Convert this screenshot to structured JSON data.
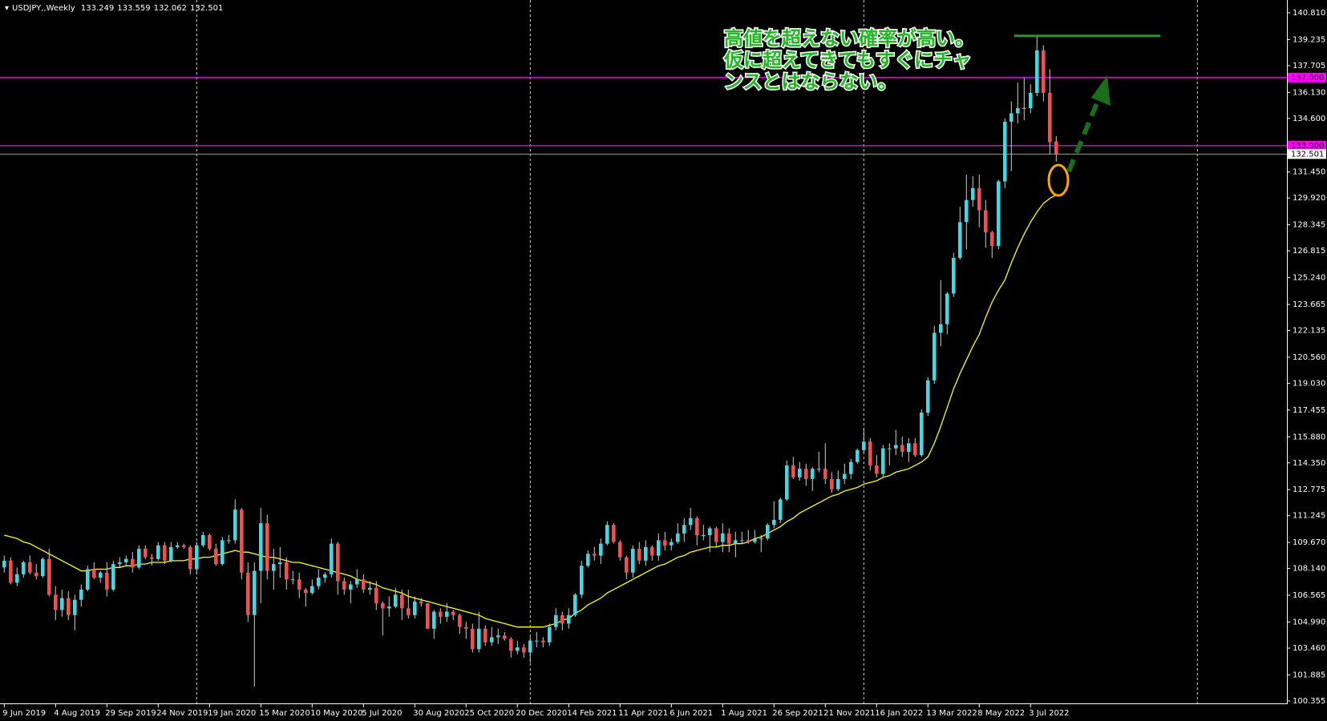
{
  "chart_data": {
    "type": "candlestick",
    "title": "USDJPY,,Weekly",
    "annotation": [
      "高値を超えない確率が高い。",
      "仮に超えてきてもすぐにチャ",
      "ンスとはならない。"
    ],
    "up_color": "#3fd8e6",
    "down_color": "#ff4a4a",
    "wick_color": "#cfcfcf",
    "ylim": [
      100.21,
      141.56
    ],
    "yticks": [
      {
        "value": 140.81,
        "label": "140.810"
      },
      139.235,
      137.705,
      {
        "value": 136.13,
        "label": "136.130"
      },
      {
        "value": 134.6,
        "label": "134.600"
      },
      133.025,
      {
        "value": 131.45,
        "label": "131.450"
      },
      {
        "value": 129.92,
        "label": "129.920"
      },
      128.345,
      126.815,
      {
        "value": 125.24,
        "label": "125.240"
      },
      123.665,
      122.135,
      {
        "value": 120.56,
        "label": "120.560"
      },
      {
        "value": 119.03,
        "label": "119.030"
      },
      117.455,
      {
        "value": 115.88,
        "label": "115.880"
      },
      {
        "value": 114.35,
        "label": "114.350"
      },
      112.775,
      111.245,
      {
        "value": 109.67,
        "label": "109.670"
      },
      {
        "value": 108.14,
        "label": "108.140"
      },
      106.565,
      {
        "value": 104.99,
        "label": "104.990"
      },
      {
        "value": 103.46,
        "label": "103.460"
      },
      101.885,
      100.355
    ],
    "hlines": [
      {
        "value": 137,
        "label": "137.000",
        "color": "#ff00ff"
      },
      {
        "value": 133,
        "label": "133.000",
        "color": "#ff00ff"
      }
    ],
    "current_price": {
      "value": 132.501,
      "color": "#9a9a9a"
    },
    "resistance": {
      "value": 139.45,
      "color": "#1e9e1e"
    },
    "categories": [
      "9 Jun 2019",
      null,
      null,
      null,
      null,
      null,
      null,
      null,
      "4 Aug 2019",
      null,
      null,
      null,
      null,
      null,
      null,
      null,
      "29 Sep 2019",
      null,
      null,
      null,
      null,
      null,
      null,
      null,
      "24 Nov 2019",
      null,
      null,
      null,
      null,
      null,
      null,
      null,
      "19 Jan 2020",
      null,
      null,
      null,
      null,
      null,
      null,
      null,
      "15 Mar 2020",
      null,
      null,
      null,
      null,
      null,
      null,
      null,
      "10 May 2020",
      null,
      null,
      null,
      null,
      null,
      null,
      null,
      "5 Jul 2020",
      null,
      null,
      null,
      null,
      null,
      null,
      null,
      "30 Aug 2020",
      null,
      null,
      null,
      null,
      null,
      null,
      null,
      "25 Oct 2020",
      null,
      null,
      null,
      null,
      null,
      null,
      null,
      "20 Dec 2020",
      null,
      null,
      null,
      null,
      null,
      null,
      null,
      "14 Feb 2021",
      null,
      null,
      null,
      null,
      null,
      null,
      null,
      "11 Apr 2021",
      null,
      null,
      null,
      null,
      null,
      null,
      null,
      "6 Jun 2021",
      null,
      null,
      null,
      null,
      null,
      null,
      null,
      "1 Aug 2021",
      null,
      null,
      null,
      null,
      null,
      null,
      null,
      "26 Sep 2021",
      null,
      null,
      null,
      null,
      null,
      null,
      null,
      "21 Nov 2021",
      null,
      null,
      null,
      null,
      null,
      null,
      null,
      "16 Jan 2022",
      null,
      null,
      null,
      null,
      null,
      null,
      null,
      "13 Mar 2022",
      null,
      null,
      null,
      null,
      null,
      null,
      null,
      "8 May 2022",
      null,
      null,
      null,
      null,
      null,
      null,
      null,
      "3 Jul 2022",
      null,
      null,
      null,
      null
    ],
    "ohlc": [
      [
        108.2,
        108.9,
        107.9,
        108.6
      ],
      [
        108.6,
        108.8,
        107.2,
        107.3
      ],
      [
        107.3,
        108.2,
        107.1,
        107.8
      ],
      [
        107.8,
        108.6,
        107.6,
        108.5
      ],
      [
        108.5,
        108.9,
        107.8,
        107.9
      ],
      [
        107.9,
        108.4,
        107.5,
        107.7
      ],
      [
        107.7,
        108.8,
        107.6,
        108.7
      ],
      [
        108.7,
        109.3,
        106.5,
        106.6
      ],
      [
        106.6,
        107.1,
        105.1,
        105.7
      ],
      [
        105.7,
        106.9,
        105.3,
        106.4
      ],
      [
        106.4,
        106.8,
        105.1,
        105.4
      ],
      [
        105.4,
        106.6,
        104.5,
        106.3
      ],
      [
        106.3,
        107.2,
        105.9,
        106.9
      ],
      [
        106.9,
        108.3,
        106.8,
        108.1
      ],
      [
        108.1,
        108.5,
        107.5,
        107.6
      ],
      [
        107.6,
        108.0,
        107.3,
        107.9
      ],
      [
        107.9,
        108.5,
        106.5,
        106.9
      ],
      [
        106.9,
        108.6,
        106.8,
        108.4
      ],
      [
        108.4,
        108.8,
        108.2,
        108.5
      ],
      [
        108.5,
        108.9,
        108.3,
        108.7
      ],
      [
        108.7,
        109.1,
        107.9,
        108.2
      ],
      [
        108.2,
        109.5,
        108.1,
        109.3
      ],
      [
        109.3,
        109.5,
        108.7,
        108.8
      ],
      [
        108.8,
        109.0,
        108.3,
        108.7
      ],
      [
        108.7,
        109.7,
        108.6,
        109.5
      ],
      [
        109.5,
        109.7,
        108.4,
        108.6
      ],
      [
        108.6,
        109.7,
        108.5,
        109.4
      ],
      [
        109.4,
        109.7,
        109.3,
        109.5
      ],
      [
        109.5,
        109.6,
        109.3,
        109.4
      ],
      [
        109.4,
        109.5,
        107.8,
        108.1
      ],
      [
        108.1,
        109.7,
        107.8,
        109.5
      ],
      [
        109.5,
        110.3,
        109.4,
        110.1
      ],
      [
        110.1,
        110.2,
        109.2,
        109.3
      ],
      [
        109.3,
        109.6,
        108.3,
        108.4
      ],
      [
        108.4,
        110.0,
        108.3,
        109.8
      ],
      [
        109.8,
        110.1,
        109.6,
        109.8
      ],
      [
        109.8,
        112.2,
        109.6,
        111.6
      ],
      [
        111.6,
        111.7,
        107.5,
        107.9
      ],
      [
        107.9,
        108.5,
        105.0,
        105.4
      ],
      [
        105.4,
        108.5,
        101.2,
        108.0
      ],
      [
        108.0,
        111.7,
        106.1,
        110.8
      ],
      [
        110.8,
        111.3,
        107.5,
        108.0
      ],
      [
        108.0,
        109.3,
        106.9,
        108.4
      ],
      [
        108.4,
        109.4,
        107.6,
        108.5
      ],
      [
        108.5,
        108.8,
        106.9,
        107.5
      ],
      [
        107.5,
        108.0,
        107.2,
        107.5
      ],
      [
        107.5,
        107.9,
        106.4,
        106.9
      ],
      [
        106.9,
        107.0,
        105.9,
        106.7
      ],
      [
        106.7,
        107.5,
        106.6,
        107.1
      ],
      [
        107.1,
        108.1,
        106.9,
        107.6
      ],
      [
        107.6,
        107.9,
        107.3,
        107.8
      ],
      [
        107.8,
        109.9,
        107.6,
        109.6
      ],
      [
        109.6,
        109.7,
        106.6,
        107.4
      ],
      [
        107.4,
        107.6,
        106.6,
        106.9
      ],
      [
        106.9,
        107.4,
        106.1,
        107.2
      ],
      [
        107.2,
        108.1,
        107.0,
        107.5
      ],
      [
        107.5,
        107.8,
        106.7,
        106.9
      ],
      [
        106.9,
        107.4,
        106.6,
        107.0
      ],
      [
        107.0,
        107.4,
        105.7,
        106.1
      ],
      [
        106.1,
        106.2,
        104.2,
        105.8
      ],
      [
        105.8,
        106.5,
        105.3,
        105.9
      ],
      [
        105.9,
        107.0,
        105.8,
        106.6
      ],
      [
        106.6,
        106.9,
        105.1,
        105.8
      ],
      [
        105.8,
        106.9,
        105.2,
        105.4
      ],
      [
        105.4,
        106.5,
        105.2,
        106.2
      ],
      [
        106.2,
        106.4,
        105.9,
        106.1
      ],
      [
        106.1,
        106.1,
        104.6,
        104.6
      ],
      [
        104.6,
        105.7,
        104.0,
        105.6
      ],
      [
        105.6,
        105.8,
        104.9,
        105.3
      ],
      [
        105.3,
        106.1,
        105.0,
        105.6
      ],
      [
        105.6,
        105.7,
        105.1,
        105.4
      ],
      [
        105.4,
        105.5,
        104.3,
        104.7
      ],
      [
        104.7,
        105.0,
        104.0,
        104.6
      ],
      [
        104.6,
        104.9,
        103.2,
        103.4
      ],
      [
        103.4,
        105.6,
        103.2,
        104.6
      ],
      [
        104.6,
        104.8,
        103.6,
        103.8
      ],
      [
        103.8,
        104.7,
        103.6,
        104.1
      ],
      [
        104.1,
        104.6,
        103.7,
        104.2
      ],
      [
        104.2,
        104.4,
        103.9,
        104.0
      ],
      [
        104.0,
        104.1,
        102.9,
        103.3
      ],
      [
        103.3,
        103.9,
        103.1,
        103.5
      ],
      [
        103.5,
        103.7,
        102.9,
        103.2
      ],
      [
        103.2,
        104.1,
        102.6,
        103.9
      ],
      [
        103.9,
        104.4,
        103.5,
        103.9
      ],
      [
        103.9,
        104.1,
        103.5,
        103.8
      ],
      [
        103.8,
        104.9,
        103.6,
        104.7
      ],
      [
        104.7,
        105.8,
        104.5,
        105.4
      ],
      [
        105.4,
        105.6,
        104.5,
        104.9
      ],
      [
        104.9,
        105.8,
        104.6,
        105.4
      ],
      [
        105.4,
        106.7,
        105.3,
        106.6
      ],
      [
        106.6,
        108.6,
        106.4,
        108.3
      ],
      [
        108.3,
        109.2,
        108.2,
        109.0
      ],
      [
        109.0,
        109.4,
        108.6,
        108.9
      ],
      [
        108.9,
        109.9,
        108.4,
        109.6
      ],
      [
        109.6,
        110.9,
        109.5,
        110.7
      ],
      [
        110.7,
        110.8,
        109.6,
        109.7
      ],
      [
        109.7,
        109.8,
        108.6,
        108.8
      ],
      [
        108.8,
        108.9,
        107.5,
        107.9
      ],
      [
        107.9,
        109.5,
        107.6,
        109.3
      ],
      [
        109.3,
        109.7,
        108.4,
        108.6
      ],
      [
        108.6,
        109.8,
        108.3,
        109.4
      ],
      [
        109.4,
        109.5,
        108.6,
        108.9
      ],
      [
        108.9,
        110.2,
        108.6,
        109.8
      ],
      [
        109.8,
        110.3,
        109.2,
        109.5
      ],
      [
        109.5,
        109.9,
        109.2,
        109.7
      ],
      [
        109.7,
        110.8,
        109.6,
        110.2
      ],
      [
        110.2,
        111.1,
        109.7,
        110.7
      ],
      [
        110.7,
        111.7,
        110.4,
        111.1
      ],
      [
        111.1,
        111.2,
        109.5,
        110.1
      ],
      [
        110.1,
        110.7,
        109.8,
        110.1
      ],
      [
        110.1,
        110.6,
        109.1,
        110.5
      ],
      [
        110.5,
        110.6,
        109.4,
        109.7
      ],
      [
        109.7,
        110.8,
        109.1,
        110.2
      ],
      [
        110.2,
        110.5,
        109.1,
        109.6
      ],
      [
        109.6,
        110.3,
        108.8,
        109.8
      ],
      [
        109.8,
        110.3,
        109.6,
        109.8
      ],
      [
        109.8,
        110.4,
        109.6,
        109.7
      ],
      [
        109.7,
        110.4,
        109.6,
        109.9
      ],
      [
        109.9,
        110.1,
        109.1,
        109.9
      ],
      [
        109.9,
        110.8,
        109.8,
        110.7
      ],
      [
        110.7,
        112.1,
        110.5,
        111.0
      ],
      [
        111.0,
        112.3,
        110.8,
        112.2
      ],
      [
        112.2,
        114.5,
        112.1,
        114.2
      ],
      [
        114.2,
        114.7,
        113.4,
        113.5
      ],
      [
        113.5,
        114.4,
        113.3,
        114.0
      ],
      [
        114.0,
        114.3,
        113.0,
        113.4
      ],
      [
        113.4,
        114.1,
        112.7,
        114.0
      ],
      [
        114.0,
        115.0,
        113.8,
        114.0
      ],
      [
        114.0,
        115.5,
        113.1,
        113.4
      ],
      [
        113.4,
        113.8,
        112.6,
        112.8
      ],
      [
        112.8,
        113.9,
        112.7,
        113.4
      ],
      [
        113.4,
        114.3,
        113.1,
        113.7
      ],
      [
        113.7,
        114.6,
        113.4,
        114.4
      ],
      [
        114.4,
        115.2,
        114.3,
        115.1
      ],
      [
        115.1,
        116.4,
        114.9,
        115.6
      ],
      [
        115.6,
        115.8,
        113.9,
        114.2
      ],
      [
        114.2,
        114.8,
        113.5,
        113.7
      ],
      [
        113.7,
        115.4,
        113.5,
        115.2
      ],
      [
        115.2,
        115.5,
        114.2,
        115.2
      ],
      [
        115.2,
        116.3,
        114.8,
        115.4
      ],
      [
        115.4,
        115.9,
        114.7,
        115.0
      ],
      [
        115.0,
        115.8,
        114.4,
        115.5
      ],
      [
        115.5,
        115.8,
        114.7,
        114.8
      ],
      [
        114.8,
        117.5,
        114.7,
        117.3
      ],
      [
        117.3,
        119.4,
        117.1,
        119.2
      ],
      [
        119.2,
        122.4,
        119.0,
        122.0
      ],
      [
        122.0,
        125.1,
        121.2,
        122.5
      ],
      [
        122.5,
        124.4,
        121.9,
        124.3
      ],
      [
        124.3,
        126.7,
        124.1,
        126.4
      ],
      [
        126.4,
        129.4,
        126.3,
        128.5
      ],
      [
        128.5,
        131.3,
        126.9,
        129.8
      ],
      [
        129.8,
        131.2,
        129.4,
        130.5
      ],
      [
        130.5,
        131.3,
        128.2,
        129.2
      ],
      [
        129.2,
        129.8,
        127.0,
        127.9
      ],
      [
        127.9,
        128.0,
        126.4,
        127.1
      ],
      [
        127.1,
        131.0,
        126.9,
        130.9
      ],
      [
        130.9,
        134.6,
        130.5,
        134.4
      ],
      [
        134.4,
        135.6,
        131.5,
        134.9
      ],
      [
        134.9,
        136.7,
        134.3,
        135.2
      ],
      [
        135.2,
        137.0,
        134.5,
        135.2
      ],
      [
        135.2,
        136.6,
        134.9,
        136.1
      ],
      [
        136.1,
        139.4,
        135.9,
        138.6
      ],
      [
        138.6,
        138.9,
        135.6,
        136.1
      ],
      [
        136.1,
        137.5,
        132.5,
        133.2
      ],
      [
        133.249,
        133.559,
        132.062,
        132.501
      ]
    ],
    "ma": {
      "color": "#ffff00",
      "values": [
        110.1,
        110.0,
        109.9,
        109.7,
        109.6,
        109.4,
        109.2,
        109.0,
        108.8,
        108.6,
        108.4,
        108.2,
        108.0,
        108.0,
        108.1,
        108.1,
        108.1,
        108.2,
        108.2,
        108.3,
        108.3,
        108.4,
        108.4,
        108.5,
        108.5,
        108.5,
        108.6,
        108.6,
        108.6,
        108.7,
        108.7,
        108.8,
        108.8,
        108.9,
        109.0,
        109.1,
        109.2,
        109.1,
        109.1,
        109.0,
        108.9,
        108.8,
        108.8,
        108.7,
        108.6,
        108.5,
        108.5,
        108.4,
        108.3,
        108.2,
        108.1,
        108.0,
        107.9,
        107.8,
        107.7,
        107.5,
        107.4,
        107.3,
        107.2,
        107.0,
        106.9,
        106.8,
        106.7,
        106.5,
        106.4,
        106.3,
        106.2,
        106.1,
        106.0,
        105.9,
        105.8,
        105.7,
        105.6,
        105.5,
        105.4,
        105.2,
        105.1,
        105.0,
        104.9,
        104.8,
        104.7,
        104.7,
        104.7,
        104.7,
        104.7,
        104.8,
        104.9,
        105.1,
        105.2,
        105.5,
        105.7,
        106.0,
        106.2,
        106.4,
        106.7,
        106.9,
        107.1,
        107.3,
        107.5,
        107.7,
        107.9,
        108.1,
        108.3,
        108.4,
        108.6,
        108.8,
        108.9,
        109.1,
        109.2,
        109.3,
        109.4,
        109.4,
        109.5,
        109.5,
        109.6,
        109.6,
        109.7,
        109.9,
        110.0,
        110.2,
        110.4,
        110.6,
        110.9,
        111.1,
        111.4,
        111.6,
        111.8,
        112.0,
        112.2,
        112.4,
        112.5,
        112.7,
        112.8,
        112.9,
        113.1,
        113.2,
        113.3,
        113.5,
        113.6,
        113.8,
        113.9,
        114.0,
        114.2,
        114.4,
        114.7,
        115.5,
        116.5,
        117.6,
        118.7,
        119.6,
        120.4,
        121.2,
        121.9,
        122.9,
        123.8,
        124.5,
        125.1,
        126.1,
        127.0,
        127.8,
        128.5,
        129.1,
        129.6,
        129.9,
        130.1
      ]
    }
  }
}
